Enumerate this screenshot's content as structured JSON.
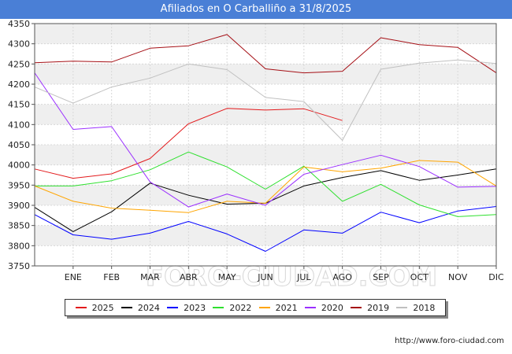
{
  "header": {
    "title": "Afiliados en O Carballiño a 31/8/2025"
  },
  "source": {
    "text": "http://www.foro-ciudad.com"
  },
  "watermark": {
    "text": "FORO-CIUDAD.COM"
  },
  "chart_data": {
    "type": "line",
    "title": "Afiliados en O Carballiño a 31/8/2025",
    "xlabel": "",
    "ylabel": "",
    "categories": [
      "ENE",
      "FEB",
      "MAR",
      "ABR",
      "MAY",
      "JUN",
      "JUL",
      "AGO",
      "SEP",
      "OCT",
      "NOV",
      "DIC"
    ],
    "yticks": [
      3750,
      3800,
      3850,
      3900,
      3950,
      4000,
      4050,
      4100,
      4150,
      4200,
      4250,
      4300,
      4350
    ],
    "ylim": [
      3750,
      4350
    ],
    "grid": true,
    "legend_position": "bottom",
    "series": [
      {
        "name": "2025",
        "color": "#e31a1c",
        "start": 3990,
        "values": [
          3967,
          3978,
          4016,
          4102,
          4140,
          4136,
          4139,
          4110,
          null,
          null,
          null,
          null
        ]
      },
      {
        "name": "2024",
        "color": "#000000",
        "start": 3895,
        "values": [
          3835,
          3884,
          3955,
          3925,
          3903,
          3905,
          3948,
          3969,
          3986,
          3962,
          3975,
          3990
        ]
      },
      {
        "name": "2023",
        "color": "#0000ff",
        "start": 3877,
        "values": [
          3827,
          3816,
          3831,
          3860,
          3829,
          3786,
          3839,
          3831,
          3883,
          3857,
          3886,
          3897
        ]
      },
      {
        "name": "2022",
        "color": "#2ee02e",
        "start": 3948,
        "values": [
          3948,
          3961,
          3988,
          4032,
          3995,
          3940,
          3997,
          3910,
          3952,
          3901,
          3872,
          3877
        ]
      },
      {
        "name": "2021",
        "color": "#ffa500",
        "start": 3948,
        "values": [
          3910,
          3893,
          3888,
          3882,
          3910,
          3905,
          3995,
          3983,
          3992,
          4011,
          4007,
          3948
        ]
      },
      {
        "name": "2020",
        "color": "#9b30ff",
        "start": 4228,
        "values": [
          4088,
          4095,
          3958,
          3896,
          3928,
          3900,
          3977,
          4001,
          4024,
          3996,
          3945,
          3947
        ]
      },
      {
        "name": "2019",
        "color": "#a50f15",
        "start": 4253,
        "values": [
          4257,
          4255,
          4289,
          4295,
          4323,
          4238,
          4228,
          4232,
          4315,
          4298,
          4291,
          4228
        ]
      },
      {
        "name": "2018",
        "color": "#c0c0c0",
        "start": 4193,
        "values": [
          4153,
          4193,
          4215,
          4250,
          4236,
          4167,
          4157,
          4061,
          4237,
          4252,
          4260,
          4251
        ]
      }
    ]
  }
}
